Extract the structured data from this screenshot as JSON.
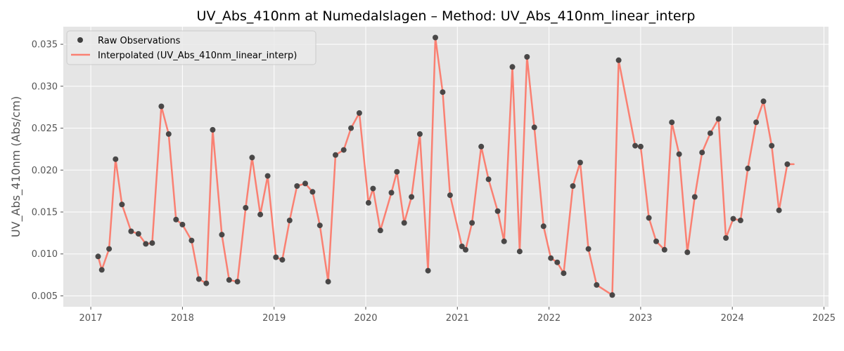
{
  "chart_data": {
    "type": "line",
    "title": "UV_Abs_410nm at Numedalslagen – Method: UV_Abs_410nm_linear_interp",
    "xlabel": "",
    "ylabel": "UV_Abs_410nm (Abs/cm)",
    "xlim": [
      2016.7,
      2025.05
    ],
    "ylim": [
      0.0037,
      0.0371
    ],
    "x_ticks": [
      2017,
      2018,
      2019,
      2020,
      2021,
      2022,
      2023,
      2024,
      2025
    ],
    "x_tick_labels": [
      "2017",
      "2018",
      "2019",
      "2020",
      "2021",
      "2022",
      "2023",
      "2024",
      "2025"
    ],
    "y_ticks": [
      0.005,
      0.01,
      0.015,
      0.02,
      0.025,
      0.03,
      0.035
    ],
    "y_tick_labels": [
      "0.005",
      "0.010",
      "0.015",
      "0.020",
      "0.025",
      "0.030",
      "0.035"
    ],
    "grid": true,
    "legend_position": "upper-left",
    "colors": {
      "background": "#e5e5e5",
      "grid": "#ffffff",
      "raw": "#404040",
      "interp": "#fa8072"
    },
    "series": [
      {
        "name": "Raw Observations",
        "kind": "scatter",
        "x": [
          2017.08,
          2017.12,
          2017.2,
          2017.27,
          2017.34,
          2017.44,
          2017.52,
          2017.6,
          2017.67,
          2017.77,
          2017.85,
          2017.93,
          2018.0,
          2018.1,
          2018.18,
          2018.26,
          2018.33,
          2018.43,
          2018.51,
          2018.6,
          2018.69,
          2018.76,
          2018.85,
          2018.93,
          2019.02,
          2019.09,
          2019.17,
          2019.25,
          2019.34,
          2019.42,
          2019.5,
          2019.59,
          2019.67,
          2019.76,
          2019.84,
          2019.93,
          2020.03,
          2020.08,
          2020.16,
          2020.28,
          2020.34,
          2020.42,
          2020.5,
          2020.59,
          2020.68,
          2020.76,
          2020.84,
          2020.92,
          2021.05,
          2021.09,
          2021.16,
          2021.26,
          2021.34,
          2021.44,
          2021.51,
          2021.6,
          2021.68,
          2021.76,
          2021.84,
          2021.94,
          2022.02,
          2022.09,
          2022.16,
          2022.26,
          2022.34,
          2022.43,
          2022.52,
          2022.69,
          2022.76,
          2022.94,
          2023.0,
          2023.09,
          2023.17,
          2023.26,
          2023.34,
          2023.42,
          2023.51,
          2023.59,
          2023.67,
          2023.76,
          2023.85,
          2023.93,
          2024.01,
          2024.09,
          2024.17,
          2024.26,
          2024.34,
          2024.43,
          2024.51,
          2024.6
        ],
        "y": [
          0.0097,
          0.0081,
          0.0106,
          0.0213,
          0.0159,
          0.0127,
          0.0124,
          0.0112,
          0.0113,
          0.0276,
          0.0243,
          0.0141,
          0.0135,
          0.0116,
          0.007,
          0.0065,
          0.0248,
          0.0123,
          0.0069,
          0.0067,
          0.0155,
          0.0215,
          0.0147,
          0.0193,
          0.0096,
          0.0093,
          0.014,
          0.0181,
          0.0184,
          0.0174,
          0.0134,
          0.0067,
          0.0218,
          0.0224,
          0.025,
          0.0268,
          0.0161,
          0.0178,
          0.0128,
          0.0173,
          0.0198,
          0.0137,
          0.0168,
          0.0243,
          0.008,
          0.0358,
          0.0293,
          0.017,
          0.0109,
          0.0105,
          0.0137,
          0.0228,
          0.0189,
          0.0151,
          0.0115,
          0.0323,
          0.0103,
          0.0335,
          0.0251,
          0.0133,
          0.0095,
          0.009,
          0.0077,
          0.0181,
          0.0209,
          0.0106,
          0.0063,
          0.0051,
          0.0331,
          0.0229,
          0.0228,
          0.0143,
          0.0115,
          0.0105,
          0.0257,
          0.0219,
          0.0102,
          0.0168,
          0.0221,
          0.0244,
          0.0261,
          0.0119,
          0.0142,
          0.014,
          0.0202,
          0.0257,
          0.0282,
          0.0229,
          0.0152,
          0.0207
        ]
      },
      {
        "name": "Interpolated (UV_Abs_410nm_linear_interp)",
        "kind": "line",
        "x": [
          2017.08,
          2017.12,
          2017.2,
          2017.27,
          2017.34,
          2017.44,
          2017.52,
          2017.6,
          2017.67,
          2017.77,
          2017.85,
          2017.93,
          2018.0,
          2018.1,
          2018.18,
          2018.26,
          2018.33,
          2018.43,
          2018.51,
          2018.6,
          2018.69,
          2018.76,
          2018.85,
          2018.93,
          2019.02,
          2019.09,
          2019.17,
          2019.25,
          2019.34,
          2019.42,
          2019.5,
          2019.59,
          2019.67,
          2019.76,
          2019.84,
          2019.93,
          2020.03,
          2020.08,
          2020.16,
          2020.28,
          2020.34,
          2020.42,
          2020.5,
          2020.59,
          2020.68,
          2020.76,
          2020.84,
          2020.92,
          2021.05,
          2021.09,
          2021.16,
          2021.26,
          2021.34,
          2021.44,
          2021.51,
          2021.6,
          2021.68,
          2021.76,
          2021.84,
          2021.94,
          2022.02,
          2022.09,
          2022.16,
          2022.26,
          2022.34,
          2022.43,
          2022.52,
          2022.69,
          2022.76,
          2022.94,
          2023.0,
          2023.09,
          2023.17,
          2023.26,
          2023.34,
          2023.42,
          2023.51,
          2023.59,
          2023.67,
          2023.76,
          2023.85,
          2023.93,
          2024.01,
          2024.09,
          2024.17,
          2024.26,
          2024.34,
          2024.43,
          2024.51,
          2024.6,
          2024.67
        ],
        "y": [
          0.0097,
          0.0081,
          0.0106,
          0.0213,
          0.0159,
          0.0127,
          0.0124,
          0.0112,
          0.0113,
          0.0276,
          0.0243,
          0.0141,
          0.0135,
          0.0116,
          0.007,
          0.0065,
          0.0248,
          0.0123,
          0.0069,
          0.0067,
          0.0155,
          0.0215,
          0.0147,
          0.0193,
          0.0096,
          0.0093,
          0.014,
          0.0181,
          0.0184,
          0.0174,
          0.0134,
          0.0067,
          0.0218,
          0.0224,
          0.025,
          0.0268,
          0.0161,
          0.0178,
          0.0128,
          0.0173,
          0.0198,
          0.0137,
          0.0168,
          0.0243,
          0.008,
          0.0358,
          0.0293,
          0.017,
          0.0109,
          0.0105,
          0.0137,
          0.0228,
          0.0189,
          0.0151,
          0.0115,
          0.0323,
          0.0103,
          0.0335,
          0.0251,
          0.0133,
          0.0095,
          0.009,
          0.0077,
          0.0181,
          0.0209,
          0.0106,
          0.0063,
          0.0051,
          0.0331,
          0.0229,
          0.0228,
          0.0143,
          0.0115,
          0.0105,
          0.0257,
          0.0219,
          0.0102,
          0.0168,
          0.0221,
          0.0244,
          0.0261,
          0.0119,
          0.0142,
          0.014,
          0.0202,
          0.0257,
          0.0282,
          0.0229,
          0.0152,
          0.0207,
          0.0207
        ]
      }
    ]
  }
}
